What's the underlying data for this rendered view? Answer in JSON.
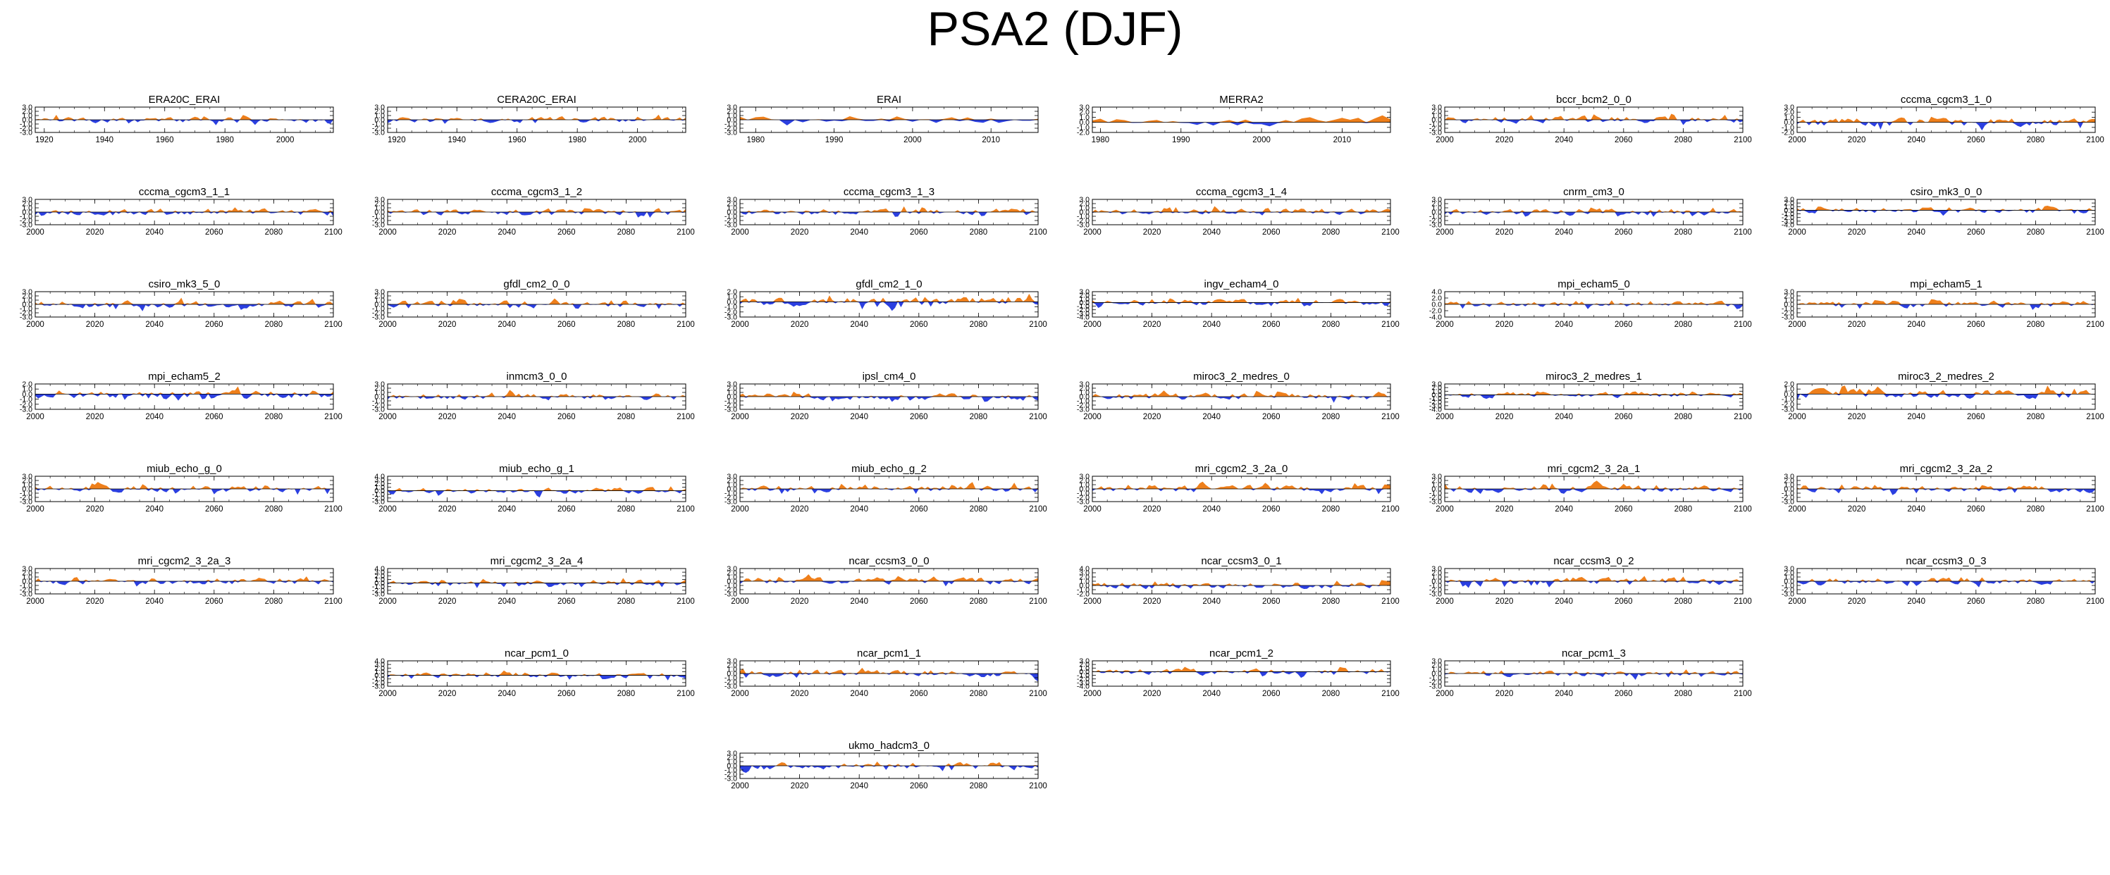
{
  "title": "PSA2 (DJF)",
  "colors": {
    "positive": "#ee7f1b",
    "negative": "#2b3fe0",
    "axis": "#000000"
  },
  "chart_data": [
    {
      "type": "area",
      "title": "ERA20C_ERAI",
      "xlim": [
        1917,
        2016
      ],
      "xticks": [
        "1920",
        "1940",
        "1960",
        "1980",
        "2000"
      ],
      "ylim": [
        -3,
        3
      ],
      "yticks": [
        "3.0",
        "2.0",
        "1.0",
        "0.0",
        "-1.0",
        "-2.0",
        "-3.0"
      ],
      "seed": 1,
      "amp": 0.9
    },
    {
      "type": "area",
      "title": "CERA20C_ERAI",
      "xlim": [
        1917,
        2016
      ],
      "xticks": [
        "1920",
        "1940",
        "1960",
        "1980",
        "2000"
      ],
      "ylim": [
        -3,
        3
      ],
      "yticks": [
        "3.0",
        "2.0",
        "1.0",
        "0.0",
        "-1.0",
        "-2.0",
        "-3.0"
      ],
      "seed": 2,
      "amp": 0.9
    },
    {
      "type": "area",
      "title": "ERAI",
      "xlim": [
        1978,
        2016
      ],
      "xticks": [
        "1980",
        "1990",
        "2000",
        "2010"
      ],
      "ylim": [
        -3,
        3
      ],
      "yticks": [
        "3.0",
        "2.0",
        "1.0",
        "0.0",
        "-1.0",
        "-2.0",
        "-3.0"
      ],
      "seed": 3,
      "amp": 1.1
    },
    {
      "type": "area",
      "title": "MERRA2",
      "xlim": [
        1979,
        2016
      ],
      "xticks": [
        "1980",
        "1990",
        "2000",
        "2010"
      ],
      "ylim": [
        -2,
        3
      ],
      "yticks": [
        "3.0",
        "2.0",
        "1.0",
        "0.0",
        "-1.0",
        "-2.0"
      ],
      "seed": 4,
      "amp": 1.1
    },
    {
      "type": "area",
      "title": "bccr_bcm2_0_0",
      "xlim": [
        2000,
        2100
      ],
      "xticks": [
        "2000",
        "2020",
        "2040",
        "2060",
        "2080",
        "2100"
      ],
      "ylim": [
        -3,
        3
      ],
      "yticks": [
        "3.0",
        "2.0",
        "1.0",
        "0.0",
        "-1.0",
        "-2.0",
        "-3.0"
      ],
      "seed": 5,
      "amp": 1.0
    },
    {
      "type": "area",
      "title": "cccma_cgcm3_1_0",
      "xlim": [
        2000,
        2100
      ],
      "xticks": [
        "2000",
        "2020",
        "2040",
        "2060",
        "2080",
        "2100"
      ],
      "ylim": [
        -2,
        3
      ],
      "yticks": [
        "3.0",
        "2.0",
        "1.0",
        "0.0",
        "-1.0",
        "-2.0"
      ],
      "seed": 6,
      "amp": 1.0
    },
    {
      "type": "area",
      "title": "cccma_cgcm3_1_1",
      "xlim": [
        2000,
        2100
      ],
      "xticks": [
        "2000",
        "2020",
        "2040",
        "2060",
        "2080",
        "2100"
      ],
      "ylim": [
        -3,
        3
      ],
      "yticks": [
        "3.0",
        "2.0",
        "1.0",
        "0.0",
        "-1.0",
        "-2.0",
        "-3.0"
      ],
      "seed": 7,
      "amp": 1.0
    },
    {
      "type": "area",
      "title": "cccma_cgcm3_1_2",
      "xlim": [
        2000,
        2100
      ],
      "xticks": [
        "2000",
        "2020",
        "2040",
        "2060",
        "2080",
        "2100"
      ],
      "ylim": [
        -3,
        3
      ],
      "yticks": [
        "3.0",
        "2.0",
        "1.0",
        "0.0",
        "-1.0",
        "-2.0",
        "-3.0"
      ],
      "seed": 8,
      "amp": 1.0
    },
    {
      "type": "area",
      "title": "cccma_cgcm3_1_3",
      "xlim": [
        2000,
        2100
      ],
      "xticks": [
        "2000",
        "2020",
        "2040",
        "2060",
        "2080",
        "2100"
      ],
      "ylim": [
        -3,
        3
      ],
      "yticks": [
        "3.0",
        "2.0",
        "1.0",
        "0.0",
        "-1.0",
        "-2.0",
        "-3.0"
      ],
      "seed": 9,
      "amp": 1.0
    },
    {
      "type": "area",
      "title": "cccma_cgcm3_1_4",
      "xlim": [
        2000,
        2100
      ],
      "xticks": [
        "2000",
        "2020",
        "2040",
        "2060",
        "2080",
        "2100"
      ],
      "ylim": [
        -3,
        3
      ],
      "yticks": [
        "3.0",
        "2.0",
        "1.0",
        "0.0",
        "-1.0",
        "-2.0",
        "-3.0"
      ],
      "seed": 10,
      "amp": 1.0
    },
    {
      "type": "area",
      "title": "cnrm_cm3_0",
      "xlim": [
        2000,
        2100
      ],
      "xticks": [
        "2000",
        "2020",
        "2040",
        "2060",
        "2080",
        "2100"
      ],
      "ylim": [
        -3,
        3
      ],
      "yticks": [
        "3.0",
        "2.0",
        "1.0",
        "0.0",
        "-1.0",
        "-2.0",
        "-3.0"
      ],
      "seed": 11,
      "amp": 1.0
    },
    {
      "type": "area",
      "title": "csiro_mk3_0_0",
      "xlim": [
        2000,
        2100
      ],
      "xticks": [
        "2000",
        "2020",
        "2040",
        "2060",
        "2080",
        "2100"
      ],
      "ylim": [
        -4,
        3
      ],
      "yticks": [
        "3.0",
        "2.0",
        "1.0",
        "0.0",
        "-1.0",
        "-2.0",
        "-3.0",
        "-4.0"
      ],
      "seed": 12,
      "amp": 1.0
    },
    {
      "type": "area",
      "title": "csiro_mk3_5_0",
      "xlim": [
        2000,
        2100
      ],
      "xticks": [
        "2000",
        "2020",
        "2040",
        "2060",
        "2080",
        "2100"
      ],
      "ylim": [
        -3,
        3
      ],
      "yticks": [
        "3.0",
        "2.0",
        "1.0",
        "0.0",
        "-1.0",
        "-2.0",
        "-3.0"
      ],
      "seed": 13,
      "amp": 1.0
    },
    {
      "type": "area",
      "title": "gfdl_cm2_0_0",
      "xlim": [
        2000,
        2100
      ],
      "xticks": [
        "2000",
        "2020",
        "2040",
        "2060",
        "2080",
        "2100"
      ],
      "ylim": [
        -3,
        3
      ],
      "yticks": [
        "3.0",
        "2.0",
        "1.0",
        "0.0",
        "-1.0",
        "-2.0",
        "-3.0"
      ],
      "seed": 14,
      "amp": 1.0
    },
    {
      "type": "area",
      "title": "gfdl_cm2_1_0",
      "xlim": [
        2000,
        2100
      ],
      "xticks": [
        "2000",
        "2020",
        "2040",
        "2060",
        "2080",
        "2100"
      ],
      "ylim": [
        -3,
        2
      ],
      "yticks": [
        "2.0",
        "1.0",
        "0.0",
        "-1.0",
        "-2.0",
        "-3.0"
      ],
      "seed": 15,
      "amp": 1.1
    },
    {
      "type": "area",
      "title": "ingv_echam4_0",
      "xlim": [
        2000,
        2100
      ],
      "xticks": [
        "2000",
        "2020",
        "2040",
        "2060",
        "2080",
        "2100"
      ],
      "ylim": [
        -4,
        3
      ],
      "yticks": [
        "3.0",
        "2.0",
        "1.0",
        "0.0",
        "-1.0",
        "-2.0",
        "-3.0",
        "-4.0"
      ],
      "seed": 16,
      "amp": 1.0
    },
    {
      "type": "area",
      "title": "mpi_echam5_0",
      "xlim": [
        2000,
        2100
      ],
      "xticks": [
        "2000",
        "2020",
        "2040",
        "2060",
        "2080",
        "2100"
      ],
      "ylim": [
        -4,
        4
      ],
      "yticks": [
        "4.0",
        "2.0",
        "0.0",
        "-2.0",
        "-4.0"
      ],
      "seed": 17,
      "amp": 1.1
    },
    {
      "type": "area",
      "title": "mpi_echam5_1",
      "xlim": [
        2000,
        2100
      ],
      "xticks": [
        "2000",
        "2020",
        "2040",
        "2060",
        "2080",
        "2100"
      ],
      "ylim": [
        -3,
        3
      ],
      "yticks": [
        "3.0",
        "2.0",
        "1.0",
        "0.0",
        "-1.0",
        "-2.0",
        "-3.0"
      ],
      "seed": 18,
      "amp": 1.0
    },
    {
      "type": "area",
      "title": "mpi_echam5_2",
      "xlim": [
        2000,
        2100
      ],
      "xticks": [
        "2000",
        "2020",
        "2040",
        "2060",
        "2080",
        "2100"
      ],
      "ylim": [
        -3,
        2
      ],
      "yticks": [
        "2.0",
        "1.0",
        "0.0",
        "-1.0",
        "-2.0",
        "-3.0"
      ],
      "seed": 19,
      "amp": 1.0
    },
    {
      "type": "area",
      "title": "inmcm3_0_0",
      "xlim": [
        2000,
        2100
      ],
      "xticks": [
        "2000",
        "2020",
        "2040",
        "2060",
        "2080",
        "2100"
      ],
      "ylim": [
        -3,
        3
      ],
      "yticks": [
        "3.0",
        "2.0",
        "1.0",
        "0.0",
        "-1.0",
        "-2.0",
        "-3.0"
      ],
      "seed": 20,
      "amp": 1.0
    },
    {
      "type": "area",
      "title": "ipsl_cm4_0",
      "xlim": [
        2000,
        2100
      ],
      "xticks": [
        "2000",
        "2020",
        "2040",
        "2060",
        "2080",
        "2100"
      ],
      "ylim": [
        -3,
        3
      ],
      "yticks": [
        "3.0",
        "2.0",
        "1.0",
        "0.0",
        "-1.0",
        "-2.0",
        "-3.0"
      ],
      "seed": 21,
      "amp": 1.0
    },
    {
      "type": "area",
      "title": "miroc3_2_medres_0",
      "xlim": [
        2000,
        2100
      ],
      "xticks": [
        "2000",
        "2020",
        "2040",
        "2060",
        "2080",
        "2100"
      ],
      "ylim": [
        -3,
        3
      ],
      "yticks": [
        "3.0",
        "2.0",
        "1.0",
        "0.0",
        "-1.0",
        "-2.0",
        "-3.0"
      ],
      "seed": 22,
      "amp": 1.0
    },
    {
      "type": "area",
      "title": "miroc3_2_medres_1",
      "xlim": [
        2000,
        2100
      ],
      "xticks": [
        "2000",
        "2020",
        "2040",
        "2060",
        "2080",
        "2100"
      ],
      "ylim": [
        -4,
        3
      ],
      "yticks": [
        "3.0",
        "2.0",
        "1.0",
        "0.0",
        "-1.0",
        "-2.0",
        "-3.0",
        "-4.0"
      ],
      "seed": 23,
      "amp": 1.0
    },
    {
      "type": "area",
      "title": "miroc3_2_medres_2",
      "xlim": [
        2000,
        2100
      ],
      "xticks": [
        "2000",
        "2020",
        "2040",
        "2060",
        "2080",
        "2100"
      ],
      "ylim": [
        -3,
        2
      ],
      "yticks": [
        "2.0",
        "1.0",
        "0.0",
        "-1.0",
        "-2.0",
        "-3.0"
      ],
      "seed": 24,
      "amp": 1.1
    },
    {
      "type": "area",
      "title": "miub_echo_g_0",
      "xlim": [
        2000,
        2100
      ],
      "xticks": [
        "2000",
        "2020",
        "2040",
        "2060",
        "2080",
        "2100"
      ],
      "ylim": [
        -3,
        3
      ],
      "yticks": [
        "3.0",
        "2.0",
        "1.0",
        "0.0",
        "-1.0",
        "-2.0",
        "-3.0"
      ],
      "seed": 25,
      "amp": 1.0
    },
    {
      "type": "area",
      "title": "miub_echo_g_1",
      "xlim": [
        2000,
        2100
      ],
      "xticks": [
        "2000",
        "2020",
        "2040",
        "2060",
        "2080",
        "2100"
      ],
      "ylim": [
        -3,
        4
      ],
      "yticks": [
        "4.0",
        "3.0",
        "2.0",
        "1.0",
        "0.0",
        "-1.0",
        "-2.0",
        "-3.0"
      ],
      "seed": 26,
      "amp": 1.0
    },
    {
      "type": "area",
      "title": "miub_echo_g_2",
      "xlim": [
        2000,
        2100
      ],
      "xticks": [
        "2000",
        "2020",
        "2040",
        "2060",
        "2080",
        "2100"
      ],
      "ylim": [
        -3,
        3
      ],
      "yticks": [
        "3.0",
        "2.0",
        "1.0",
        "0.0",
        "-1.0",
        "-2.0",
        "-3.0"
      ],
      "seed": 27,
      "amp": 1.0
    },
    {
      "type": "area",
      "title": "mri_cgcm2_3_2a_0",
      "xlim": [
        2000,
        2100
      ],
      "xticks": [
        "2000",
        "2020",
        "2040",
        "2060",
        "2080",
        "2100"
      ],
      "ylim": [
        -3,
        3
      ],
      "yticks": [
        "3.0",
        "2.0",
        "1.0",
        "0.0",
        "-1.0",
        "-2.0",
        "-3.0"
      ],
      "seed": 28,
      "amp": 1.0
    },
    {
      "type": "area",
      "title": "mri_cgcm2_3_2a_1",
      "xlim": [
        2000,
        2100
      ],
      "xticks": [
        "2000",
        "2020",
        "2040",
        "2060",
        "2080",
        "2100"
      ],
      "ylim": [
        -3,
        3
      ],
      "yticks": [
        "3.0",
        "2.0",
        "1.0",
        "0.0",
        "-1.0",
        "-2.0",
        "-3.0"
      ],
      "seed": 29,
      "amp": 1.0
    },
    {
      "type": "area",
      "title": "mri_cgcm2_3_2a_2",
      "xlim": [
        2000,
        2100
      ],
      "xticks": [
        "2000",
        "2020",
        "2040",
        "2060",
        "2080",
        "2100"
      ],
      "ylim": [
        -3,
        3
      ],
      "yticks": [
        "3.0",
        "2.0",
        "1.0",
        "0.0",
        "-1.0",
        "-2.0",
        "-3.0"
      ],
      "seed": 30,
      "amp": 1.0
    },
    {
      "type": "area",
      "title": "mri_cgcm2_3_2a_3",
      "xlim": [
        2000,
        2100
      ],
      "xticks": [
        "2000",
        "2020",
        "2040",
        "2060",
        "2080",
        "2100"
      ],
      "ylim": [
        -3,
        3
      ],
      "yticks": [
        "3.0",
        "2.0",
        "1.0",
        "0.0",
        "-1.0",
        "-2.0",
        "-3.0"
      ],
      "seed": 31,
      "amp": 1.0
    },
    {
      "type": "area",
      "title": "mri_cgcm2_3_2a_4",
      "xlim": [
        2000,
        2100
      ],
      "xticks": [
        "2000",
        "2020",
        "2040",
        "2060",
        "2080",
        "2100"
      ],
      "ylim": [
        -3,
        4
      ],
      "yticks": [
        "4.0",
        "3.0",
        "2.0",
        "1.0",
        "0.0",
        "-1.0",
        "-2.0",
        "-3.0"
      ],
      "seed": 32,
      "amp": 1.0
    },
    {
      "type": "area",
      "title": "ncar_ccsm3_0_0",
      "xlim": [
        2000,
        2100
      ],
      "xticks": [
        "2000",
        "2020",
        "2040",
        "2060",
        "2080",
        "2100"
      ],
      "ylim": [
        -3,
        3
      ],
      "yticks": [
        "3.0",
        "2.0",
        "1.0",
        "0.0",
        "-1.0",
        "-2.0",
        "-3.0"
      ],
      "seed": 33,
      "amp": 1.0
    },
    {
      "type": "area",
      "title": "ncar_ccsm3_0_1",
      "xlim": [
        2000,
        2100
      ],
      "xticks": [
        "2000",
        "2020",
        "2040",
        "2060",
        "2080",
        "2100"
      ],
      "ylim": [
        -2,
        4
      ],
      "yticks": [
        "4.0",
        "3.0",
        "2.0",
        "1.0",
        "0.0",
        "-1.0",
        "-2.0"
      ],
      "seed": 34,
      "amp": 1.0
    },
    {
      "type": "area",
      "title": "ncar_ccsm3_0_2",
      "xlim": [
        2000,
        2100
      ],
      "xticks": [
        "2000",
        "2020",
        "2040",
        "2060",
        "2080",
        "2100"
      ],
      "ylim": [
        -3,
        3
      ],
      "yticks": [
        "3.0",
        "2.0",
        "1.0",
        "0.0",
        "-1.0",
        "-2.0",
        "-3.0"
      ],
      "seed": 35,
      "amp": 1.0
    },
    {
      "type": "area",
      "title": "ncar_ccsm3_0_3",
      "xlim": [
        2000,
        2100
      ],
      "xticks": [
        "2000",
        "2020",
        "2040",
        "2060",
        "2080",
        "2100"
      ],
      "ylim": [
        -3,
        3
      ],
      "yticks": [
        "3.0",
        "2.0",
        "1.0",
        "0.0",
        "-1.0",
        "-2.0",
        "-3.0"
      ],
      "seed": 36,
      "amp": 1.0
    },
    null,
    {
      "type": "area",
      "title": "ncar_pcm1_0",
      "xlim": [
        2000,
        2100
      ],
      "xticks": [
        "2000",
        "2020",
        "2040",
        "2060",
        "2080",
        "2100"
      ],
      "ylim": [
        -3,
        4
      ],
      "yticks": [
        "4.0",
        "3.0",
        "2.0",
        "1.0",
        "0.0",
        "-1.0",
        "-2.0",
        "-3.0"
      ],
      "seed": 37,
      "amp": 1.0
    },
    {
      "type": "area",
      "title": "ncar_pcm1_1",
      "xlim": [
        2000,
        2100
      ],
      "xticks": [
        "2000",
        "2020",
        "2040",
        "2060",
        "2080",
        "2100"
      ],
      "ylim": [
        -3,
        3
      ],
      "yticks": [
        "3.0",
        "2.0",
        "1.0",
        "0.0",
        "-1.0",
        "-2.0",
        "-3.0"
      ],
      "seed": 38,
      "amp": 1.0
    },
    {
      "type": "area",
      "title": "ncar_pcm1_2",
      "xlim": [
        2000,
        2100
      ],
      "xticks": [
        "2000",
        "2020",
        "2040",
        "2060",
        "2080",
        "2100"
      ],
      "ylim": [
        -4,
        3
      ],
      "yticks": [
        "3.0",
        "2.0",
        "1.0",
        "0.0",
        "-1.0",
        "-2.0",
        "-3.0",
        "-4.0"
      ],
      "seed": 39,
      "amp": 1.0
    },
    {
      "type": "area",
      "title": "ncar_pcm1_3",
      "xlim": [
        2000,
        2100
      ],
      "xticks": [
        "2000",
        "2020",
        "2040",
        "2060",
        "2080",
        "2100"
      ],
      "ylim": [
        -3,
        3
      ],
      "yticks": [
        "3.0",
        "2.0",
        "1.0",
        "0.0",
        "-1.0",
        "-2.0",
        "-3.0"
      ],
      "seed": 40,
      "amp": 1.0
    },
    null,
    null,
    null,
    {
      "type": "area",
      "title": "ukmo_hadcm3_0",
      "xlim": [
        2000,
        2100
      ],
      "xticks": [
        "2000",
        "2020",
        "2040",
        "2060",
        "2080",
        "2100"
      ],
      "ylim": [
        -3,
        3
      ],
      "yticks": [
        "3.0",
        "2.0",
        "1.0",
        "0.0",
        "-1.0",
        "-2.0",
        "-3.0"
      ],
      "seed": 41,
      "amp": 1.0
    }
  ]
}
